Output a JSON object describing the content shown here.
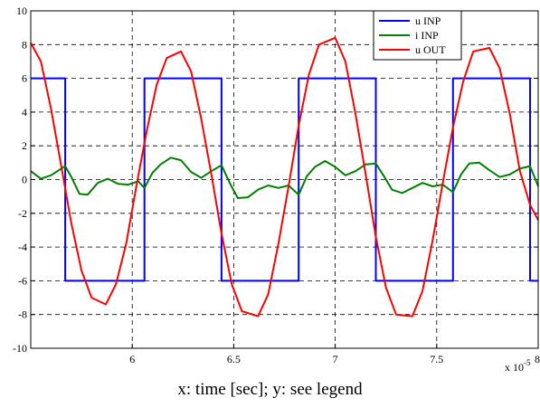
{
  "chart_data": {
    "type": "line",
    "title": "",
    "xlabel": "",
    "ylabel": "",
    "xlim": [
      5.5,
      8.0
    ],
    "ylim": [
      -10,
      10
    ],
    "x_scale_note": "x 10",
    "x_scale_exp": "-5",
    "xticks": [
      6,
      6.5,
      7,
      7.5,
      8
    ],
    "xtick_labels": [
      "6",
      "6.5",
      "7",
      "7.5",
      "8"
    ],
    "yticks": [
      -10,
      -8,
      -6,
      -4,
      -2,
      0,
      2,
      4,
      6,
      8,
      10
    ],
    "ytick_labels": [
      "-10",
      "-8",
      "-6",
      "-4",
      "-2",
      "0",
      "2",
      "4",
      "6",
      "8",
      "10"
    ],
    "grid": true,
    "legend_position": "top-right",
    "colors": {
      "u_inp": "#0000ff",
      "i_inp": "#008000",
      "u_out": "#ff0000"
    },
    "series": [
      {
        "name": "u INP",
        "key": "u_inp",
        "x": [
          5.5,
          5.67,
          5.67,
          6.06,
          6.06,
          6.44,
          6.44,
          6.82,
          6.82,
          7.2,
          7.2,
          7.58,
          7.58,
          7.96,
          7.96,
          8.0
        ],
        "y": [
          6.0,
          6.0,
          -6.0,
          -6.0,
          6.0,
          6.0,
          -6.0,
          -6.0,
          6.0,
          6.0,
          -6.0,
          -6.0,
          6.0,
          6.0,
          -6.0,
          -6.0
        ]
      },
      {
        "name": "i INP",
        "key": "i_inp",
        "x": [
          5.5,
          5.55,
          5.6,
          5.67,
          5.7,
          5.74,
          5.78,
          5.83,
          5.88,
          5.93,
          5.98,
          6.03,
          6.06,
          6.1,
          6.14,
          6.19,
          6.24,
          6.29,
          6.34,
          6.39,
          6.44,
          6.48,
          6.52,
          6.57,
          6.62,
          6.67,
          6.72,
          6.77,
          6.82,
          6.86,
          6.9,
          6.95,
          7.0,
          7.05,
          7.1,
          7.15,
          7.2,
          7.24,
          7.28,
          7.33,
          7.38,
          7.43,
          7.48,
          7.53,
          7.58,
          7.62,
          7.66,
          7.71,
          7.76,
          7.81,
          7.86,
          7.91,
          7.96,
          8.0
        ],
        "y": [
          0.5,
          0.05,
          0.25,
          0.8,
          0.15,
          -0.85,
          -0.9,
          -0.2,
          0.05,
          -0.25,
          -0.3,
          -0.1,
          -0.5,
          0.4,
          0.9,
          1.3,
          1.15,
          0.45,
          0.1,
          0.5,
          0.85,
          -0.2,
          -1.1,
          -1.05,
          -0.6,
          -0.35,
          -0.5,
          -0.35,
          -0.9,
          0.2,
          0.75,
          1.1,
          0.75,
          0.25,
          0.5,
          0.9,
          0.95,
          0.2,
          -0.6,
          -0.8,
          -0.5,
          -0.2,
          -0.4,
          -0.3,
          -0.75,
          0.3,
          0.95,
          1.0,
          0.55,
          0.15,
          0.3,
          0.65,
          0.8,
          -0.4
        ]
      },
      {
        "name": "u OUT",
        "key": "u_out",
        "x": [
          5.5,
          5.55,
          5.6,
          5.65,
          5.7,
          5.75,
          5.8,
          5.87,
          5.92,
          5.97,
          6.02,
          6.07,
          6.12,
          6.17,
          6.24,
          6.29,
          6.34,
          6.39,
          6.44,
          6.49,
          6.54,
          6.62,
          6.67,
          6.72,
          6.77,
          6.82,
          6.87,
          6.92,
          7.0,
          7.05,
          7.1,
          7.15,
          7.2,
          7.25,
          7.3,
          7.38,
          7.43,
          7.48,
          7.53,
          7.58,
          7.63,
          7.68,
          7.76,
          7.81,
          7.86,
          7.91,
          7.96,
          8.0
        ],
        "y": [
          8.1,
          7.0,
          4.2,
          0.8,
          -2.6,
          -5.4,
          -7.0,
          -7.4,
          -6.2,
          -3.8,
          -0.4,
          2.8,
          5.6,
          7.2,
          7.6,
          6.4,
          3.6,
          0.3,
          -3.2,
          -6.2,
          -7.8,
          -8.1,
          -6.8,
          -3.8,
          -0.4,
          3.2,
          6.2,
          8.0,
          8.4,
          7.0,
          3.9,
          0.3,
          -3.4,
          -6.4,
          -8.0,
          -8.1,
          -6.6,
          -3.6,
          -0.2,
          3.1,
          5.8,
          7.6,
          7.8,
          6.6,
          3.9,
          0.5,
          -1.5,
          -2.4
        ]
      }
    ]
  },
  "caption": "x: time [sec]; y: see legend"
}
